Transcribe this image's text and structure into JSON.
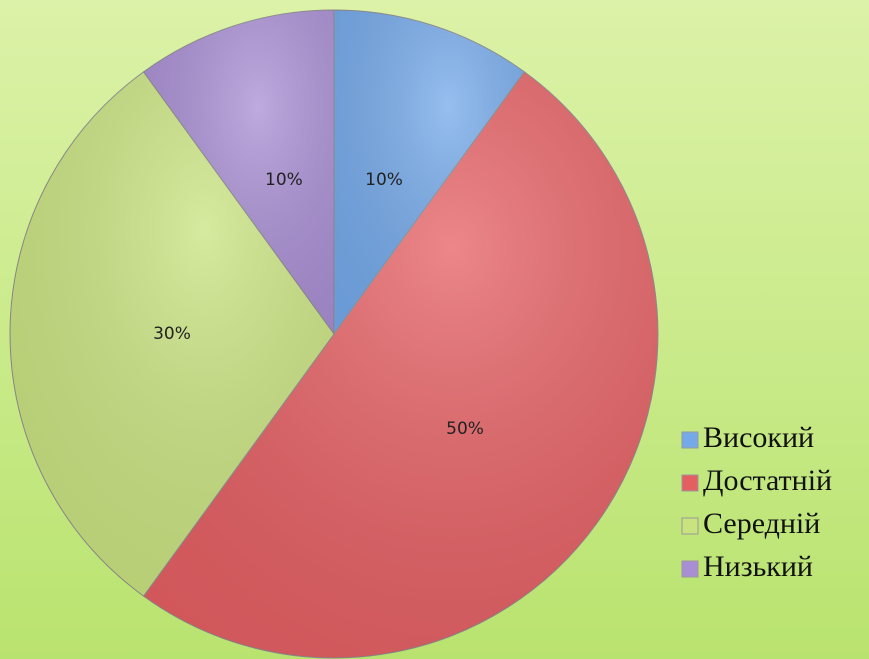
{
  "chart_data": {
    "type": "pie",
    "categories": [
      "Високий",
      "Достатній",
      "Середній",
      "Низький"
    ],
    "values": [
      10,
      50,
      30,
      10
    ],
    "value_labels": [
      "10%",
      "50%",
      "30%",
      "10%"
    ],
    "colors": [
      "#74a9ea",
      "#e55e62",
      "#c9e37f",
      "#a98ed4"
    ],
    "legend": "right"
  }
}
